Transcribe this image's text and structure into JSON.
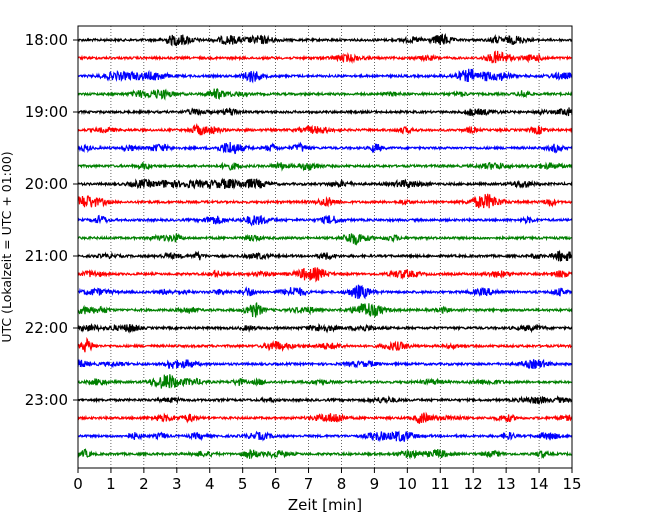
{
  "chart_data": {
    "type": "line",
    "xlabel": "Zeit  [min]",
    "ylabel": "UTC (Lokalzeit = UTC + 01:00)",
    "xlim": [
      0,
      15
    ],
    "x_ticks": [
      "0",
      "1",
      "2",
      "3",
      "4",
      "5",
      "6",
      "7",
      "8",
      "9",
      "10",
      "11",
      "12",
      "13",
      "14",
      "15"
    ],
    "y_ticks": [
      "18:00",
      "19:00",
      "20:00",
      "21:00",
      "22:00",
      "23:00"
    ],
    "grid": "vertical dotted",
    "trace_interval_minutes": 15,
    "trace_colors": [
      "#000000",
      "#ff0000",
      "#0000ff",
      "#008000"
    ],
    "series": [
      {
        "start": "18:00",
        "color": "#000000"
      },
      {
        "start": "18:15",
        "color": "#ff0000"
      },
      {
        "start": "18:30",
        "color": "#0000ff"
      },
      {
        "start": "18:45",
        "color": "#008000"
      },
      {
        "start": "19:00",
        "color": "#000000"
      },
      {
        "start": "19:15",
        "color": "#ff0000"
      },
      {
        "start": "19:30",
        "color": "#0000ff"
      },
      {
        "start": "19:45",
        "color": "#008000"
      },
      {
        "start": "20:00",
        "color": "#000000"
      },
      {
        "start": "20:15",
        "color": "#ff0000"
      },
      {
        "start": "20:30",
        "color": "#0000ff"
      },
      {
        "start": "20:45",
        "color": "#008000"
      },
      {
        "start": "21:00",
        "color": "#000000"
      },
      {
        "start": "21:15",
        "color": "#ff0000"
      },
      {
        "start": "21:30",
        "color": "#0000ff"
      },
      {
        "start": "21:45",
        "color": "#008000"
      },
      {
        "start": "22:00",
        "color": "#000000"
      },
      {
        "start": "22:15",
        "color": "#ff0000"
      },
      {
        "start": "22:30",
        "color": "#0000ff"
      },
      {
        "start": "22:45",
        "color": "#008000"
      },
      {
        "start": "23:00",
        "color": "#000000"
      },
      {
        "start": "23:15",
        "color": "#ff0000"
      },
      {
        "start": "23:30",
        "color": "#0000ff"
      },
      {
        "start": "23:45",
        "color": "#008000"
      }
    ]
  }
}
